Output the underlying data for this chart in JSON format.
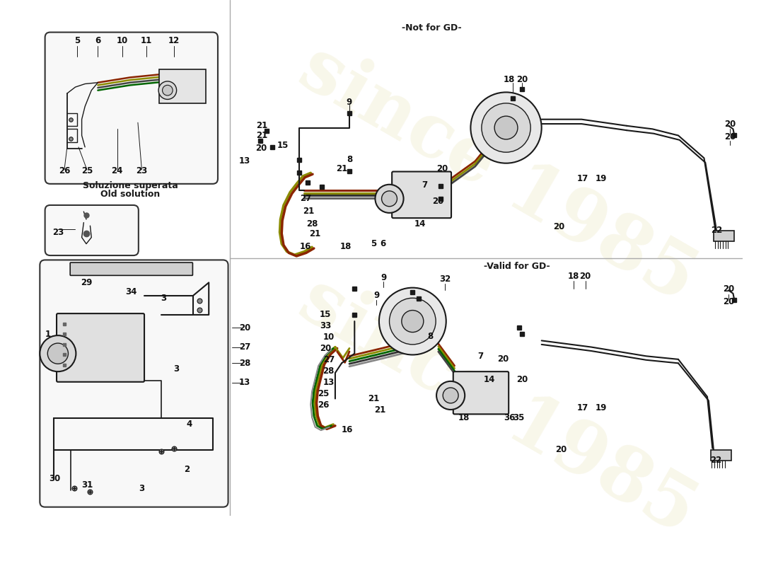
{
  "bg_color": "#ffffff",
  "watermark_text": "since 1985",
  "watermark_color": "#d4c875",
  "title_not_for_gd": "-Not for GD-",
  "title_valid_for_gd": "-Valid for GD-",
  "old_solution_it": "Soluzione superata",
  "old_solution_en": "Old solution",
  "line_color": "#1a1a1a",
  "box_line_color": "#333333",
  "box_fill": "#f8f8f8",
  "pipe_red": "#8B2500",
  "pipe_yellow": "#8B8B00",
  "pipe_green": "#006400",
  "pipe_purple": "#800080"
}
